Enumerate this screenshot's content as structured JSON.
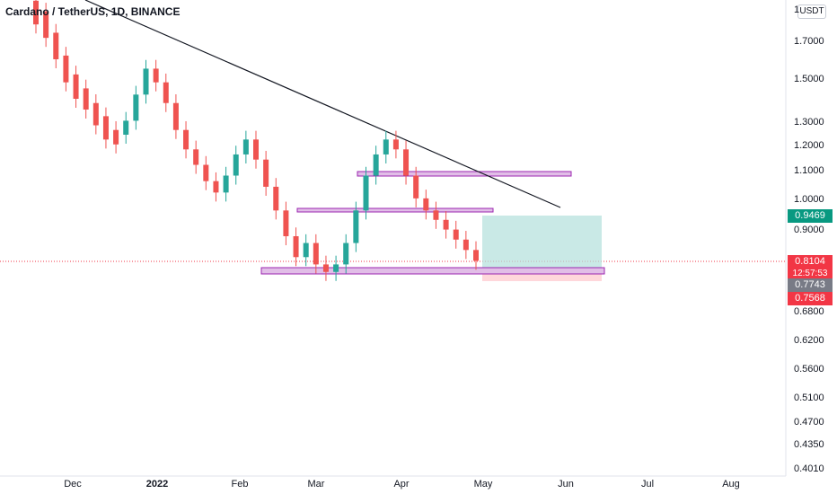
{
  "header": {
    "symbol_title": "Cardano / TetherUS, 1D, BINANCE",
    "currency_badge": "USDT"
  },
  "price_axis": {
    "ticks": [
      "1.7000",
      "1.5000",
      "1.3000",
      "1.2000",
      "1.1000",
      "1.0000",
      "0.9000",
      "0.6800",
      "0.6200",
      "0.5600",
      "0.5100",
      "0.4700",
      "0.4350",
      "0.4010"
    ],
    "top_partial": "1"
  },
  "time_axis": {
    "ticks": [
      "Dec",
      "2022",
      "Feb",
      "Mar",
      "Apr",
      "May",
      "Jun",
      "Jul",
      "Aug"
    ]
  },
  "labels": {
    "target": "0.9469",
    "last_price": "0.8104",
    "countdown": "12:57:53",
    "entry": "0.7743",
    "stop": "0.7568"
  },
  "colors": {
    "up": "#26a69a",
    "down": "#ef5350",
    "trendline": "#131722",
    "zone_border": "#9c27b0",
    "zone_fill": "#e1bee7",
    "target_zone": "#b2dfdb",
    "stop_zone": "#ffcdd2",
    "target_label": "#089981",
    "last_label": "#f23645",
    "entry_label": "#787b86"
  },
  "chart_data": {
    "type": "candlestick",
    "series": [
      {
        "name": "ADA/USDT",
        "values": [
          [
            1.95,
            1.8
          ],
          [
            1.88,
            1.72
          ],
          [
            1.75,
            1.6
          ],
          [
            1.62,
            1.48
          ],
          [
            1.52,
            1.4
          ],
          [
            1.45,
            1.35
          ],
          [
            1.38,
            1.28
          ],
          [
            1.32,
            1.22
          ],
          [
            1.26,
            1.2
          ],
          [
            1.24,
            1.3
          ],
          [
            1.3,
            1.42
          ],
          [
            1.42,
            1.55
          ],
          [
            1.55,
            1.48
          ],
          [
            1.48,
            1.38
          ],
          [
            1.38,
            1.26
          ],
          [
            1.26,
            1.18
          ],
          [
            1.18,
            1.12
          ],
          [
            1.12,
            1.06
          ],
          [
            1.06,
            1.02
          ],
          [
            1.02,
            1.08
          ],
          [
            1.08,
            1.16
          ],
          [
            1.16,
            1.22
          ],
          [
            1.22,
            1.14
          ],
          [
            1.14,
            1.04
          ],
          [
            1.04,
            0.96
          ],
          [
            0.96,
            0.88
          ],
          [
            0.88,
            0.82
          ],
          [
            0.82,
            0.86
          ],
          [
            0.86,
            0.8
          ],
          [
            0.8,
            0.78
          ],
          [
            0.78,
            0.8
          ],
          [
            0.8,
            0.86
          ],
          [
            0.86,
            0.96
          ],
          [
            0.96,
            1.08
          ],
          [
            1.08,
            1.16
          ],
          [
            1.16,
            1.22
          ],
          [
            1.22,
            1.18
          ],
          [
            1.18,
            1.08
          ],
          [
            1.08,
            1.0
          ],
          [
            1.0,
            0.96
          ],
          [
            0.96,
            0.93
          ],
          [
            0.93,
            0.9
          ],
          [
            0.9,
            0.87
          ],
          [
            0.87,
            0.84
          ],
          [
            0.84,
            0.81
          ]
        ]
      }
    ]
  }
}
